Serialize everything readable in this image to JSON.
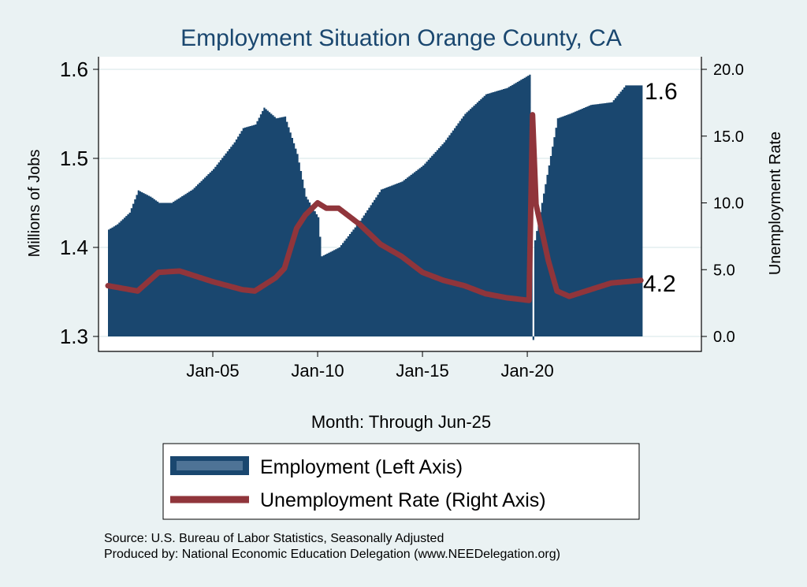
{
  "chart_data": {
    "type": "area+line",
    "title": "Employment Situation Orange  County, CA",
    "xlabel": "Month: Through Jun-25",
    "ylabel_left": "Millions of Jobs",
    "ylabel_right": "Unemployment Rate",
    "x_ticks": [
      "Jan-05",
      "Jan-10",
      "Jan-15",
      "Jan-20"
    ],
    "x_tick_dates": [
      "2005-01",
      "2010-01",
      "2015-01",
      "2020-01"
    ],
    "x_range": [
      "2000-01",
      "2025-06"
    ],
    "y_left_ticks": [
      "1.3",
      "1.4",
      "1.5",
      "1.6"
    ],
    "y_left_range": [
      1.3,
      1.6
    ],
    "y_right_ticks": [
      "0.0",
      "5.0",
      "10.0",
      "15.0",
      "20.0"
    ],
    "y_right_range": [
      0,
      20
    ],
    "grid": true,
    "legend_position": "bottom",
    "end_labels": {
      "employment": "1.6",
      "unemployment": "4.2"
    },
    "colors": {
      "employment": "#1a476f",
      "unemployment": "#90353b",
      "background": "#eaf2f3",
      "title": "#1a476f"
    },
    "series": [
      {
        "name": "Employment (Left Axis)",
        "type": "area",
        "axis": "left",
        "points": [
          [
            "2000-01",
            1.42
          ],
          [
            "2000-06",
            1.426
          ],
          [
            "2001-01",
            1.439
          ],
          [
            "2001-06",
            1.464
          ],
          [
            "2002-01",
            1.457
          ],
          [
            "2002-06",
            1.45
          ],
          [
            "2003-01",
            1.45
          ],
          [
            "2004-01",
            1.465
          ],
          [
            "2005-01",
            1.488
          ],
          [
            "2006-01",
            1.518
          ],
          [
            "2006-06",
            1.534
          ],
          [
            "2007-01",
            1.538
          ],
          [
            "2007-06",
            1.557
          ],
          [
            "2008-01",
            1.545
          ],
          [
            "2008-06",
            1.547
          ],
          [
            "2009-01",
            1.505
          ],
          [
            "2009-06",
            1.457
          ],
          [
            "2010-01",
            1.434
          ],
          [
            "2010-03",
            1.39
          ],
          [
            "2011-01",
            1.4
          ],
          [
            "2012-01",
            1.43
          ],
          [
            "2013-01",
            1.465
          ],
          [
            "2014-01",
            1.474
          ],
          [
            "2015-01",
            1.492
          ],
          [
            "2016-01",
            1.518
          ],
          [
            "2017-01",
            1.55
          ],
          [
            "2018-01",
            1.572
          ],
          [
            "2019-01",
            1.579
          ],
          [
            "2020-02",
            1.594
          ],
          [
            "2020-04",
            1.296
          ],
          [
            "2020-05",
            1.408
          ],
          [
            "2021-01",
            1.492
          ],
          [
            "2021-06",
            1.545
          ],
          [
            "2022-01",
            1.55
          ],
          [
            "2023-01",
            1.56
          ],
          [
            "2024-01",
            1.563
          ],
          [
            "2024-09",
            1.582
          ],
          [
            "2025-06",
            1.582
          ]
        ]
      },
      {
        "name": "Unemployment Rate (Right Axis)",
        "type": "line",
        "axis": "right",
        "points": [
          [
            "2000-01",
            3.8
          ],
          [
            "2001-06",
            3.4
          ],
          [
            "2002-06",
            4.8
          ],
          [
            "2003-06",
            4.9
          ],
          [
            "2005-01",
            4.1
          ],
          [
            "2006-06",
            3.5
          ],
          [
            "2007-01",
            3.4
          ],
          [
            "2008-01",
            4.4
          ],
          [
            "2008-06",
            5.1
          ],
          [
            "2009-01",
            8.1
          ],
          [
            "2009-06",
            9.1
          ],
          [
            "2010-01",
            10.0
          ],
          [
            "2010-06",
            9.6
          ],
          [
            "2011-01",
            9.6
          ],
          [
            "2012-01",
            8.4
          ],
          [
            "2013-01",
            6.9
          ],
          [
            "2014-01",
            6.0
          ],
          [
            "2015-01",
            4.8
          ],
          [
            "2016-01",
            4.2
          ],
          [
            "2017-01",
            3.8
          ],
          [
            "2018-01",
            3.2
          ],
          [
            "2019-01",
            2.9
          ],
          [
            "2020-02",
            2.7
          ],
          [
            "2020-04",
            16.6
          ],
          [
            "2020-06",
            9.9
          ],
          [
            "2020-09",
            8.1
          ],
          [
            "2021-01",
            5.7
          ],
          [
            "2021-06",
            3.4
          ],
          [
            "2022-01",
            3.0
          ],
          [
            "2023-01",
            3.5
          ],
          [
            "2024-01",
            4.0
          ],
          [
            "2025-06",
            4.2
          ]
        ]
      }
    ]
  },
  "notes": {
    "source": "Source: U.S. Bureau of Labor Statistics, Seasonally Adjusted",
    "produced": "Produced by: National Economic Education Delegation (www.NEEDelegation.org)"
  }
}
